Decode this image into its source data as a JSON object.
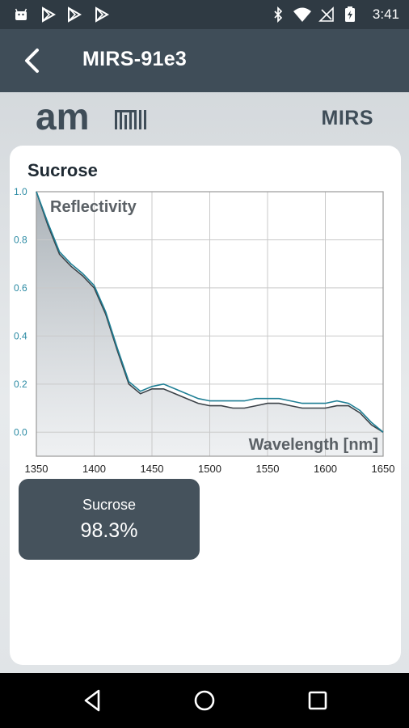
{
  "status_bar": {
    "time": "3:41",
    "left_icons": [
      "android-icon",
      "play-store-icon",
      "play-store-icon",
      "play-store-icon"
    ],
    "right_icons": [
      "bluetooth-icon",
      "wifi-icon",
      "no-signal-icon",
      "battery-charging-icon"
    ]
  },
  "app_bar": {
    "title": "MIRS-91e3",
    "back_icon": "back-arrow-icon"
  },
  "brand": {
    "logo_text": "am",
    "product": "MIRS"
  },
  "card": {
    "title": "Sucrose",
    "result": {
      "label": "Sucrose",
      "value": "98.3%"
    }
  },
  "nav_bar": {
    "icons": [
      "back-triangle-icon",
      "home-circle-icon",
      "recents-square-icon"
    ]
  },
  "colors": {
    "status_bar": "#2f3a43",
    "app_bar": "#3f4d58",
    "teal_series": "#1f7f95",
    "dark_series": "#3b4248",
    "tick_label": "#2a8aa3"
  },
  "chart_data": {
    "type": "line",
    "ylabel": "Reflectivity",
    "xlabel": "Wavelength [nm]",
    "xlim": [
      1350,
      1650
    ],
    "ylim": [
      -0.1,
      1.0
    ],
    "x_ticks": [
      "1350",
      "1400",
      "1450",
      "1500",
      "1550",
      "1600",
      "1650"
    ],
    "y_ticks": [
      "1.0",
      "0.8",
      "0.6",
      "0.4",
      "0.2",
      "0.0"
    ],
    "grid": true,
    "series": [
      {
        "color": "#3b4248",
        "x": [
          1350,
          1360,
          1370,
          1380,
          1390,
          1400,
          1410,
          1420,
          1430,
          1440,
          1450,
          1460,
          1470,
          1480,
          1490,
          1500,
          1510,
          1520,
          1530,
          1540,
          1550,
          1560,
          1570,
          1580,
          1590,
          1600,
          1610,
          1620,
          1630,
          1640,
          1650
        ],
        "values": [
          1.0,
          0.86,
          0.74,
          0.69,
          0.65,
          0.6,
          0.49,
          0.34,
          0.2,
          0.16,
          0.18,
          0.18,
          0.16,
          0.14,
          0.12,
          0.11,
          0.11,
          0.1,
          0.1,
          0.11,
          0.12,
          0.12,
          0.11,
          0.1,
          0.1,
          0.1,
          0.11,
          0.11,
          0.08,
          0.03,
          0.0
        ]
      },
      {
        "color": "#1f7f95",
        "x": [
          1350,
          1360,
          1370,
          1380,
          1390,
          1400,
          1410,
          1420,
          1430,
          1440,
          1450,
          1460,
          1470,
          1480,
          1490,
          1500,
          1510,
          1520,
          1530,
          1540,
          1550,
          1560,
          1570,
          1580,
          1590,
          1600,
          1610,
          1620,
          1630,
          1640,
          1650
        ],
        "values": [
          1.0,
          0.87,
          0.75,
          0.7,
          0.66,
          0.61,
          0.5,
          0.35,
          0.21,
          0.17,
          0.19,
          0.2,
          0.18,
          0.16,
          0.14,
          0.13,
          0.13,
          0.13,
          0.13,
          0.14,
          0.14,
          0.14,
          0.13,
          0.12,
          0.12,
          0.12,
          0.13,
          0.12,
          0.09,
          0.04,
          0.0
        ]
      }
    ]
  }
}
